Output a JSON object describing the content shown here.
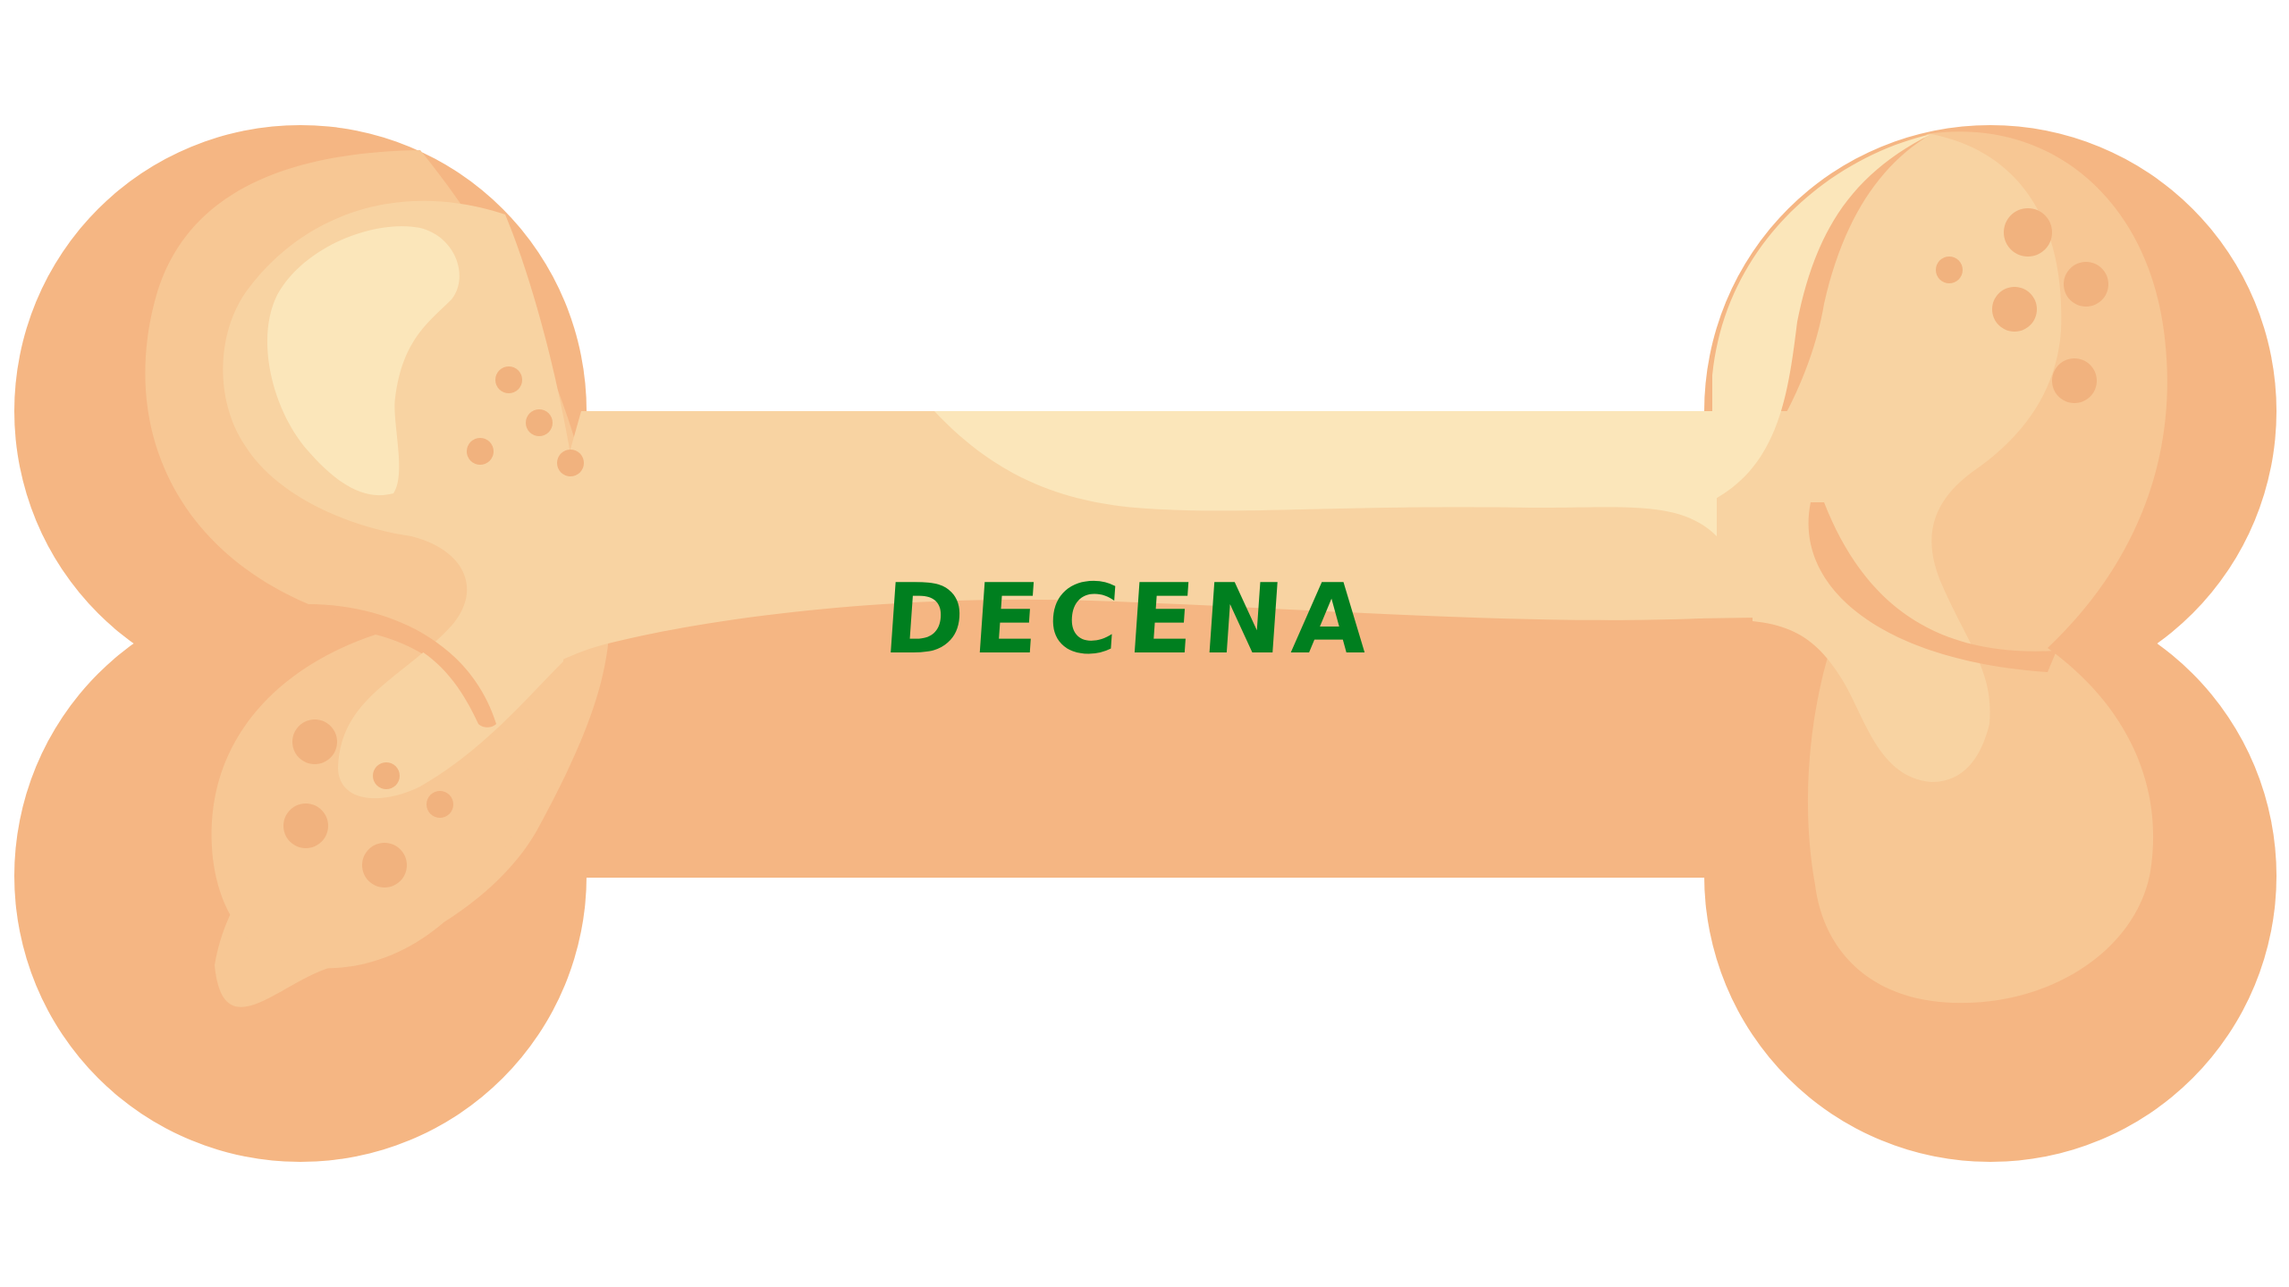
{
  "label": "DECENA",
  "colors": {
    "background": "#ffffff",
    "bone_base": "#F5B683",
    "bone_mid": "#F7C794",
    "bone_light": "#F8D3A2",
    "bone_highlight": "#FBE6BA",
    "spots": "#F1B27E",
    "label_text": "#007F1F"
  },
  "icons": [
    "bone-illustration"
  ]
}
